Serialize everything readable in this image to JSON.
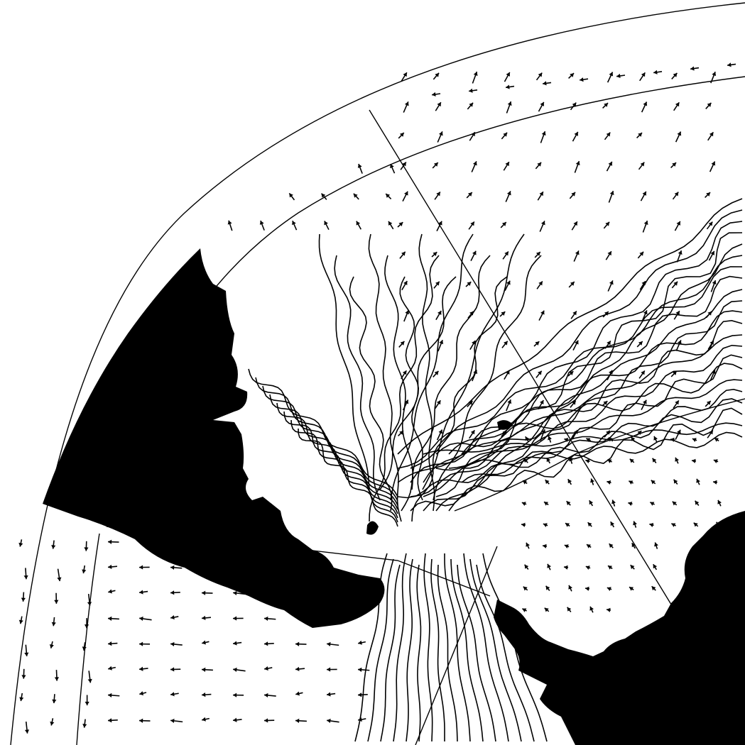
{
  "map": {
    "projection": "polar quadrant",
    "colors": {
      "background": "#ffffff",
      "land": "#000000",
      "lines": "#000000"
    },
    "layers": [
      "graticule",
      "land",
      "flow-vectors",
      "streamlines"
    ]
  }
}
